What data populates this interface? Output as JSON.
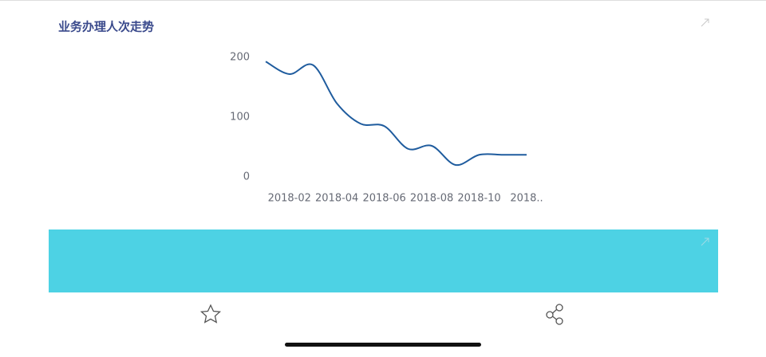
{
  "chart_data": {
    "type": "line",
    "title": "业务办理人次走势",
    "categories": [
      null,
      "2018-02",
      null,
      "2018-04",
      null,
      "2018-06",
      null,
      "2018-08",
      null,
      "2018-10",
      null,
      "2018.."
    ],
    "series": [
      {
        "color": "#1f5c9e",
        "values": [
          193,
          172,
          187,
          123,
          89,
          85,
          47,
          52,
          20,
          37,
          37,
          37
        ]
      }
    ],
    "ylim": [
      0,
      200
    ],
    "yticks": [
      0,
      100,
      200
    ],
    "grid": false,
    "smooth": true
  }
}
